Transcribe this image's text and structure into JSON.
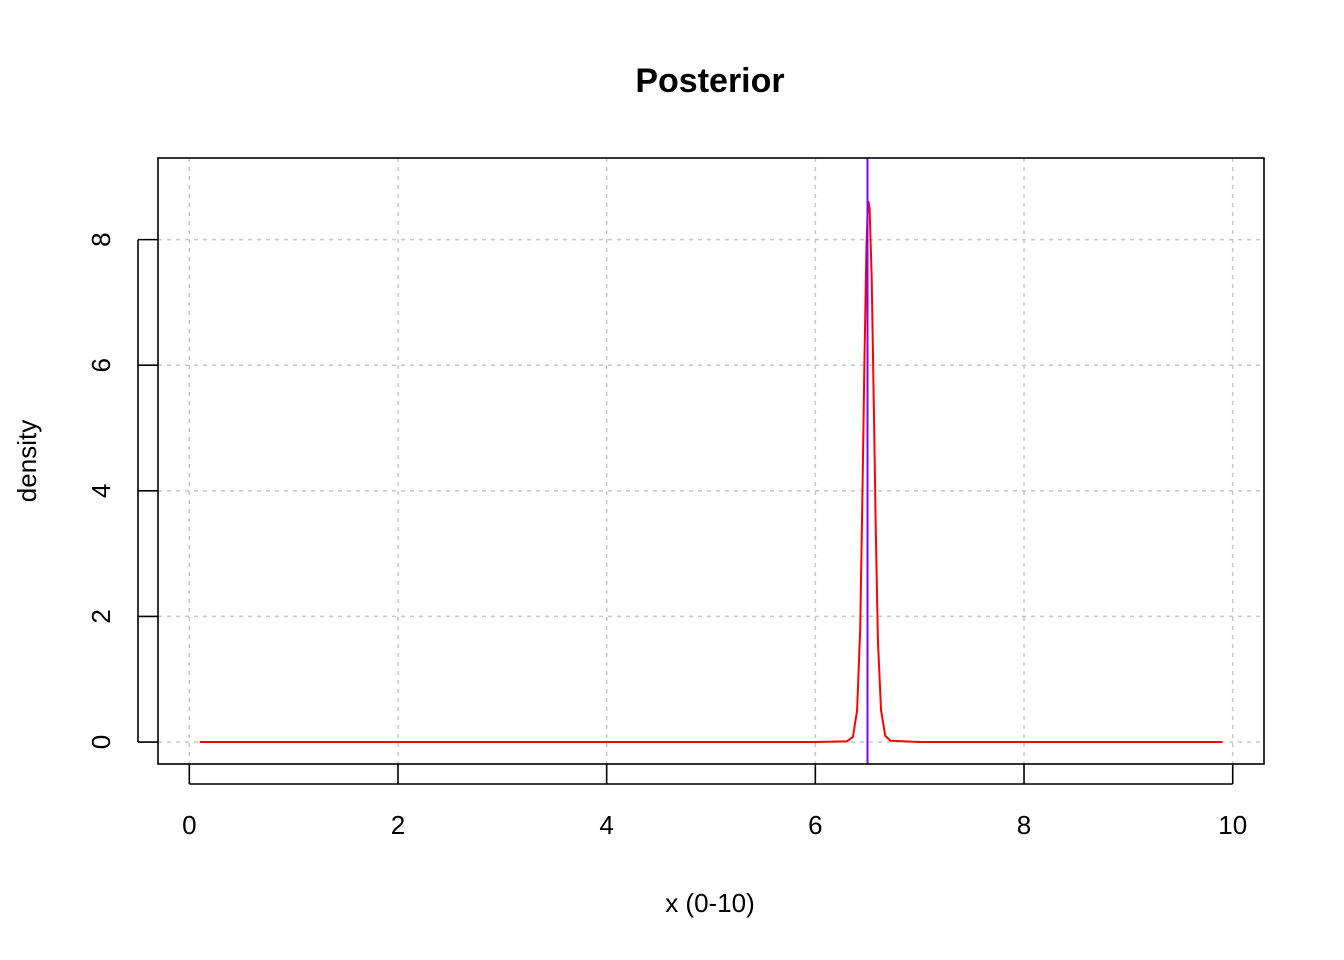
{
  "chart_data": {
    "type": "line",
    "title": "Posterior",
    "xlabel": "x (0-10)",
    "ylabel": "density",
    "xlim": [
      -0.3,
      10.3
    ],
    "ylim": [
      -0.35,
      9.3
    ],
    "x_ticks": [
      0,
      2,
      4,
      6,
      8,
      10
    ],
    "y_ticks": [
      0,
      2,
      4,
      6,
      8
    ],
    "grid": true,
    "series": [
      {
        "color": "#ff0000",
        "x": [
          0.1,
          1.0,
          2.0,
          3.0,
          4.0,
          5.0,
          6.0,
          6.3,
          6.36,
          6.4,
          6.43,
          6.45,
          6.47,
          6.49,
          6.5,
          6.51,
          6.52,
          6.54,
          6.56,
          6.58,
          6.6,
          6.63,
          6.67,
          6.72,
          7.0,
          8.0,
          9.0,
          9.9
        ],
        "y": [
          0,
          0,
          0,
          0,
          0,
          0,
          0,
          0.01,
          0.08,
          0.5,
          1.8,
          3.8,
          6.0,
          7.9,
          8.4,
          8.6,
          8.5,
          7.4,
          5.4,
          3.3,
          1.6,
          0.5,
          0.1,
          0.02,
          0,
          0,
          0,
          0
        ]
      }
    ],
    "vline": {
      "x": 6.5,
      "color": "#8000ff"
    }
  }
}
